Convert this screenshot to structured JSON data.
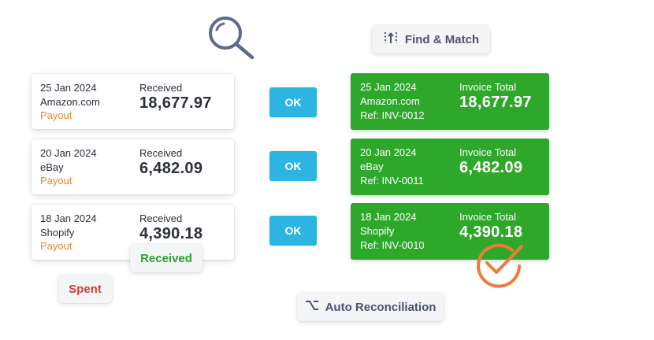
{
  "icons": {
    "search": "search-icon",
    "find_match": "columns-match-icon",
    "auto_reconciliation": "option-key-icon",
    "matched": "check-circle-icon"
  },
  "badges": {
    "find_match": "Find & Match",
    "auto_reconciliation": "Auto Reconciliation",
    "spent": "Spent",
    "received": "Received"
  },
  "transactions": [
    {
      "date": "25 Jan 2024",
      "merchant": "Amazon.com",
      "type": "Payout",
      "label": "Received",
      "amount": "18,677.97"
    },
    {
      "date": "20 Jan 2024",
      "merchant": "eBay",
      "type": "Payout",
      "label": "Received",
      "amount": "6,482.09"
    },
    {
      "date": "18 Jan 2024",
      "merchant": "Shopify",
      "type": "Payout",
      "label": "Received",
      "amount": "4,390.18"
    }
  ],
  "actions": [
    {
      "label": "OK"
    },
    {
      "label": "OK"
    },
    {
      "label": "OK"
    }
  ],
  "invoices": [
    {
      "date": "25 Jan 2024",
      "merchant": "Amazon.com",
      "ref": "Ref: INV-0012",
      "label": "Invoice Total",
      "amount": "18,677.97"
    },
    {
      "date": "20 Jan 2024",
      "merchant": "eBay",
      "ref": "Ref: INV-0011",
      "label": "Invoice Total",
      "amount": "6,482.09"
    },
    {
      "date": "18 Jan 2024",
      "merchant": "Shopify",
      "ref": "Ref: INV-0010",
      "label": "Invoice Total",
      "amount": "4,390.18"
    }
  ],
  "colors": {
    "invoice_green": "#2ea82a",
    "ok_blue": "#2bb5e0",
    "payout_orange": "#e0883a",
    "spent_red": "#d83a3a",
    "received_green": "#2e9e2e",
    "check_orange": "#f07a3a",
    "icon_slate": "#5d6b8a"
  }
}
